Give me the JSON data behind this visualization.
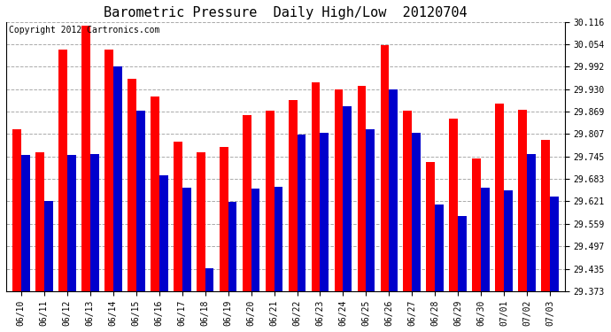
{
  "title": "Barometric Pressure  Daily High/Low  20120704",
  "copyright": "Copyright 2012 Cartronics.com",
  "dates": [
    "06/10",
    "06/11",
    "06/12",
    "06/13",
    "06/14",
    "06/15",
    "06/16",
    "06/17",
    "06/18",
    "06/19",
    "06/20",
    "06/21",
    "06/22",
    "06/23",
    "06/24",
    "06/25",
    "06/26",
    "06/27",
    "06/28",
    "06/29",
    "06/30",
    "07/01",
    "07/02",
    "07/03"
  ],
  "highs": [
    29.82,
    29.755,
    30.038,
    30.105,
    30.04,
    29.958,
    29.91,
    29.785,
    29.755,
    29.77,
    29.858,
    29.87,
    29.9,
    29.95,
    29.93,
    29.938,
    30.052,
    29.87,
    29.73,
    29.848,
    29.738,
    29.89,
    29.872,
    29.79
  ],
  "lows": [
    29.748,
    29.623,
    29.748,
    29.75,
    29.993,
    29.87,
    29.692,
    29.658,
    29.436,
    29.62,
    29.656,
    29.66,
    29.804,
    29.81,
    29.882,
    29.82,
    29.93,
    29.81,
    29.612,
    29.58,
    29.658,
    29.65,
    29.75,
    29.635
  ],
  "high_color": "#ff0000",
  "low_color": "#0000cc",
  "ylim_min": 29.373,
  "ylim_max": 30.116,
  "yticks": [
    29.373,
    29.435,
    29.497,
    29.559,
    29.621,
    29.683,
    29.745,
    29.807,
    29.869,
    29.93,
    29.992,
    30.054,
    30.116
  ],
  "bg_color": "#ffffff",
  "plot_bg": "#ffffff",
  "grid_color": "#aaaaaa",
  "title_fontsize": 11,
  "copyright_fontsize": 7
}
